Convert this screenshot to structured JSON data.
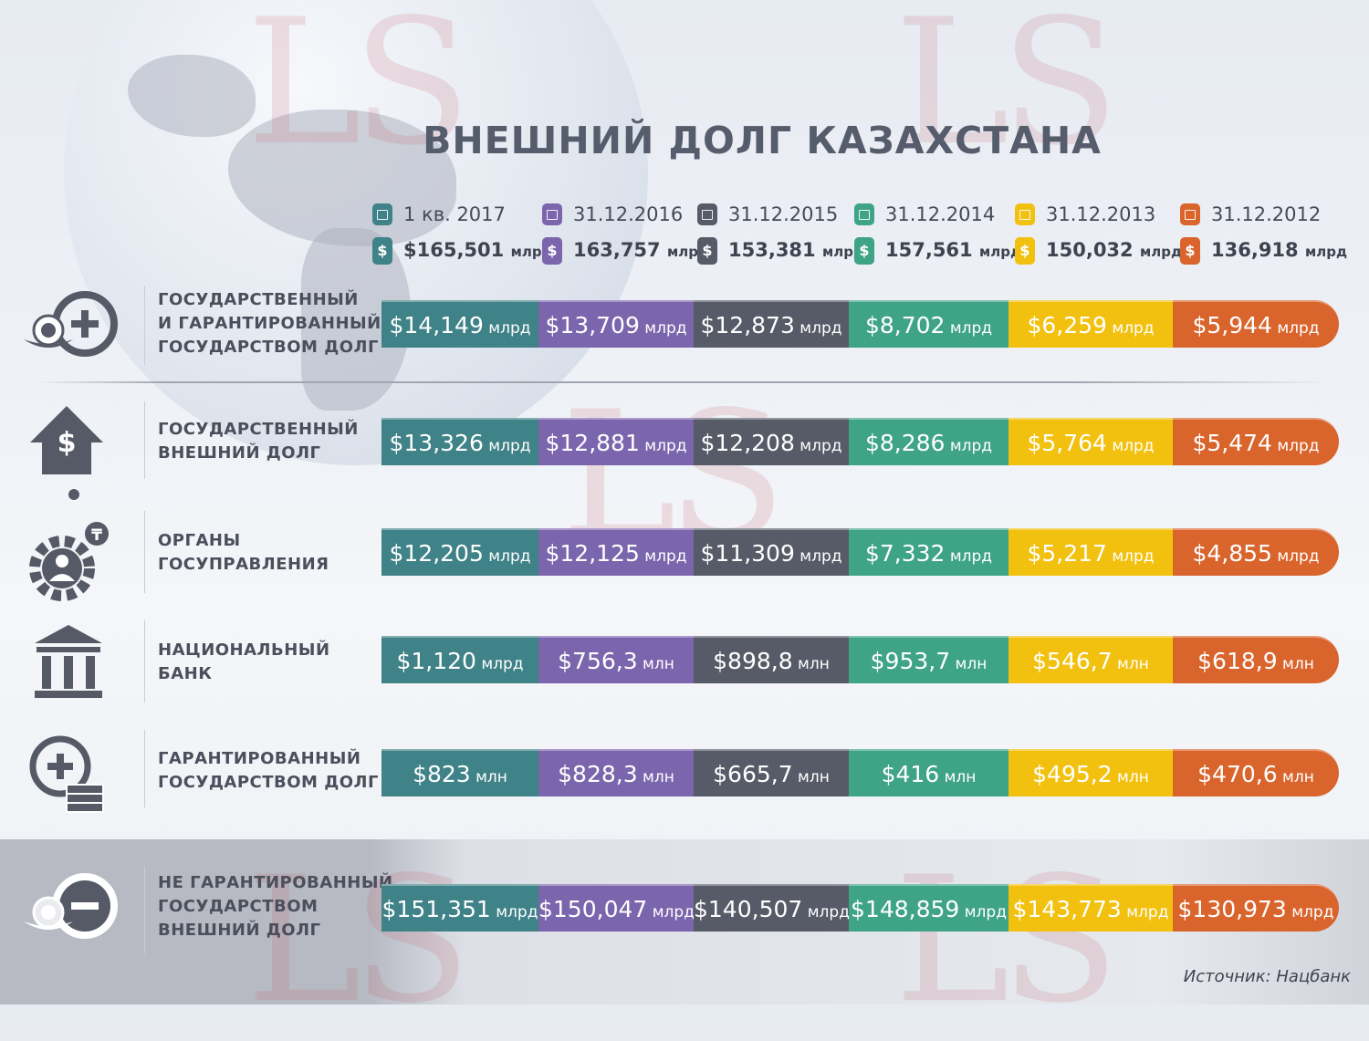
{
  "title": "ВНЕШНИЙ ДОЛГ КАЗАХСТАНА",
  "watermark": "LS",
  "colors": {
    "teal": "#3f8287",
    "purple": "#7b65ad",
    "slate": "#575b68",
    "green": "#3fa486",
    "yellow": "#f2c10f",
    "orange": "#d9652d",
    "text_dark": "#4a4f5b"
  },
  "periods": [
    {
      "date": "1 кв. 2017",
      "total": "$165,501",
      "unit": "млрд",
      "color": "#3f8287"
    },
    {
      "date": "31.12.2016",
      "total": "163,757",
      "unit": "млрд",
      "color": "#7b65ad"
    },
    {
      "date": "31.12.2015",
      "total": "153,381",
      "unit": "млрд",
      "color": "#575b68"
    },
    {
      "date": "31.12.2014",
      "total": "157,561",
      "unit": "млрд",
      "color": "#3fa486"
    },
    {
      "date": "31.12.2013",
      "total": "150,032",
      "unit": "млрд",
      "color": "#f2c10f"
    },
    {
      "date": "31.12.2012",
      "total": "136,918",
      "unit": "млрд",
      "color": "#d9652d"
    }
  ],
  "rows": [
    {
      "label": [
        "ГОСУДАРСТВЕННЫЙ",
        "И ГАРАНТИРОВАННЫЙ",
        "ГОСУДАРСТВОМ ДОЛГ"
      ],
      "icon": "emblem-plus-icon",
      "values": [
        {
          "amount": "$14,149",
          "unit": "млрд"
        },
        {
          "amount": "$13,709",
          "unit": "млрд"
        },
        {
          "amount": "$12,873",
          "unit": "млрд"
        },
        {
          "amount": "$8,702",
          "unit": "млрд"
        },
        {
          "amount": "$6,259",
          "unit": "млрд"
        },
        {
          "amount": "$5,944",
          "unit": "млрд"
        }
      ]
    },
    {
      "label": [
        "ГОСУДАРСТВЕННЫЙ",
        "ВНЕШНИЙ ДОЛГ"
      ],
      "icon": "dollar-house-arrows-icon",
      "values": [
        {
          "amount": "$13,326",
          "unit": "млрд"
        },
        {
          "amount": "$12,881",
          "unit": "млрд"
        },
        {
          "amount": "$12,208",
          "unit": "млрд"
        },
        {
          "amount": "$8,286",
          "unit": "млрд"
        },
        {
          "amount": "$5,764",
          "unit": "млрд"
        },
        {
          "amount": "$5,474",
          "unit": "млрд"
        }
      ]
    },
    {
      "label": [
        "ОРГАНЫ",
        "ГОСУПРАВЛЕНИЯ"
      ],
      "icon": "gear-person-tenge-icon",
      "values": [
        {
          "amount": "$12,205",
          "unit": "млрд"
        },
        {
          "amount": "$12,125",
          "unit": "млрд"
        },
        {
          "amount": "$11,309",
          "unit": "млрд"
        },
        {
          "amount": "$7,332",
          "unit": "млрд"
        },
        {
          "amount": "$5,217",
          "unit": "млрд"
        },
        {
          "amount": "$4,855",
          "unit": "млрд"
        }
      ]
    },
    {
      "label": [
        "НАЦИОНАЛЬНЫЙ",
        "БАНК"
      ],
      "icon": "bank-building-icon",
      "values": [
        {
          "amount": "$1,120",
          "unit": "млрд"
        },
        {
          "amount": "$756,3",
          "unit": "млн"
        },
        {
          "amount": "$898,8",
          "unit": "млн"
        },
        {
          "amount": "$953,7",
          "unit": "млн"
        },
        {
          "amount": "$546,7",
          "unit": "млн"
        },
        {
          "amount": "$618,9",
          "unit": "млн"
        }
      ]
    },
    {
      "label": [
        "ГАРАНТИРОВАННЫЙ",
        "ГОСУДАРСТВОМ ДОЛГ"
      ],
      "icon": "plus-money-stack-icon",
      "values": [
        {
          "amount": "$823",
          "unit": "млн"
        },
        {
          "amount": "$828,3",
          "unit": "млн"
        },
        {
          "amount": "$665,7",
          "unit": "млн"
        },
        {
          "amount": "$416",
          "unit": "млн"
        },
        {
          "amount": "$495,2",
          "unit": "млн"
        },
        {
          "amount": "$470,6",
          "unit": "млн"
        }
      ]
    },
    {
      "label": [
        "НЕ ГАРАНТИРОВАННЫЙ",
        "ГОСУДАРСТВОМ",
        "ВНЕШНИЙ ДОЛГ"
      ],
      "icon": "emblem-minus-icon",
      "values": [
        {
          "amount": "$151,351",
          "unit": "млрд"
        },
        {
          "amount": "$150,047",
          "unit": "млрд"
        },
        {
          "amount": "$140,507",
          "unit": "млрд"
        },
        {
          "amount": "$148,859",
          "unit": "млрд"
        },
        {
          "amount": "$143,773",
          "unit": "млрд"
        },
        {
          "amount": "$130,973",
          "unit": "млрд"
        }
      ]
    }
  ],
  "source": "Источник: Нацбанк"
}
